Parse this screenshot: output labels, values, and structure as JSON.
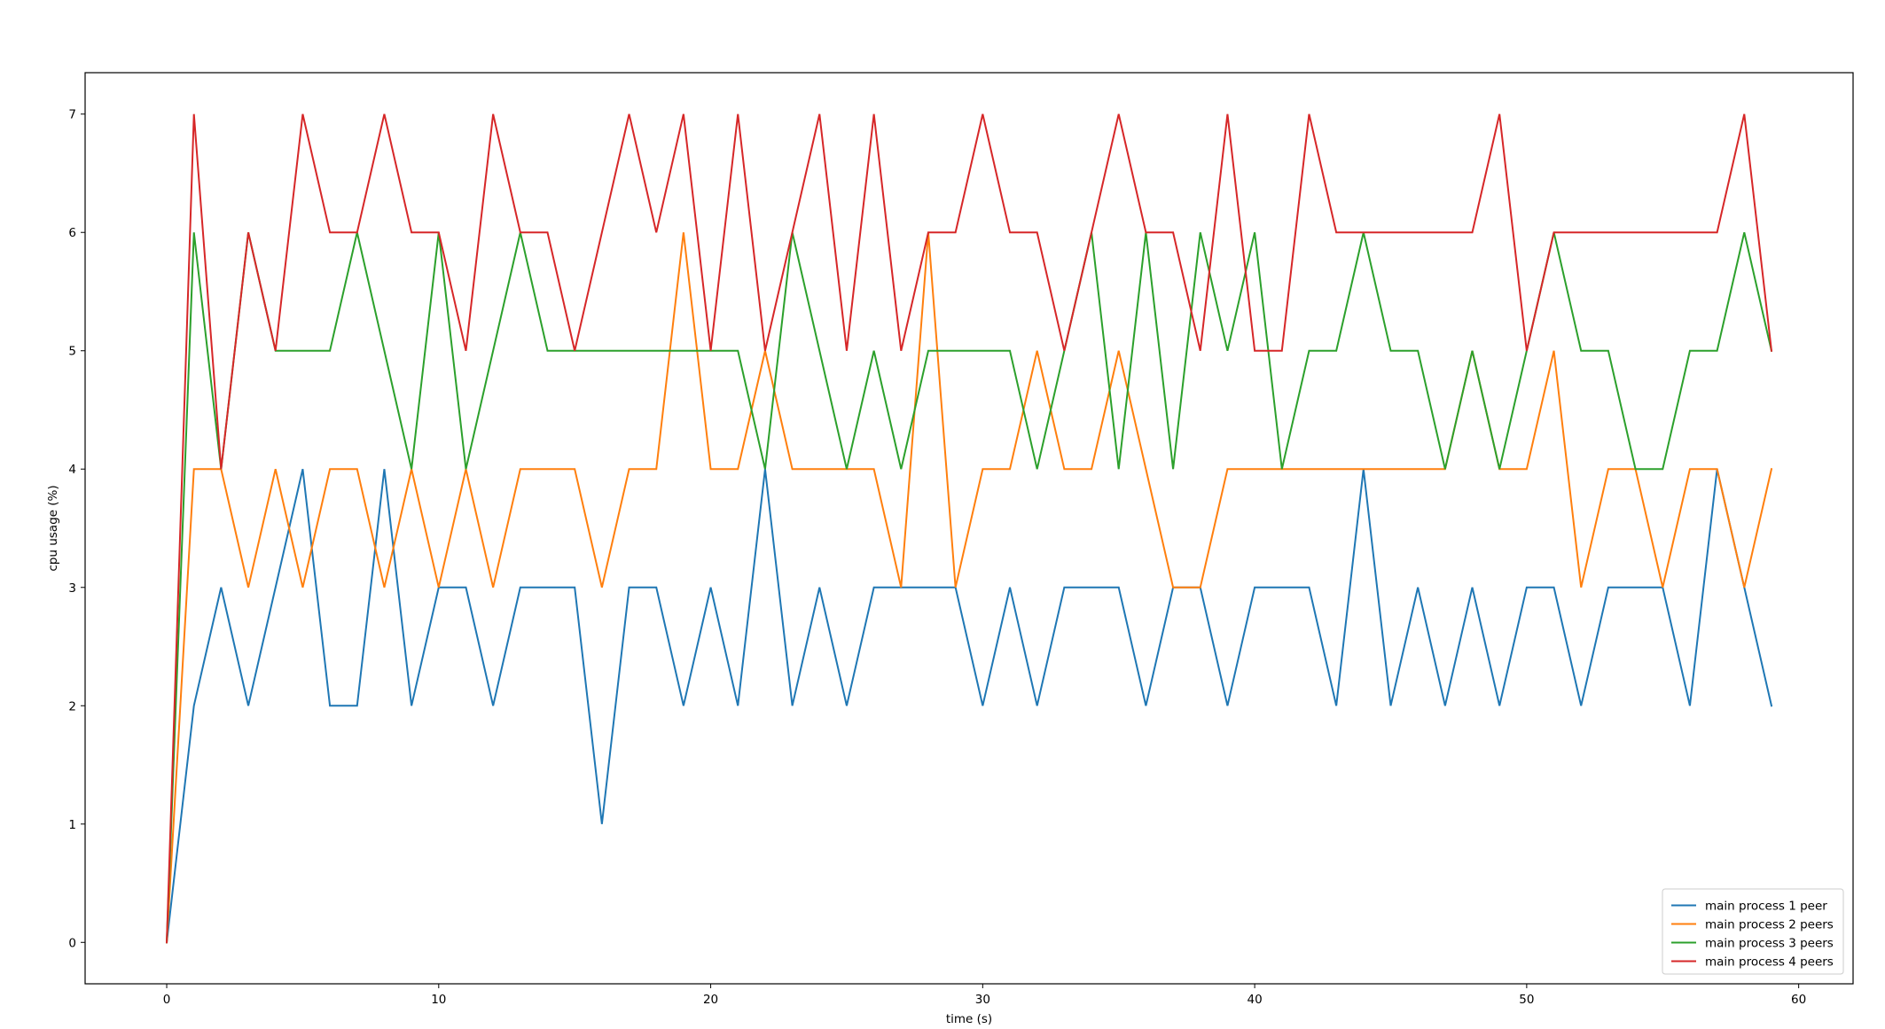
{
  "chart_data": {
    "type": "line",
    "title": "",
    "xlabel": "time (s)",
    "ylabel": "cpu usage (%)",
    "xlim": [
      -3,
      62
    ],
    "ylim": [
      -0.35,
      7.35
    ],
    "xticks": [
      0,
      10,
      20,
      30,
      40,
      50,
      60
    ],
    "yticks": [
      0,
      1,
      2,
      3,
      4,
      5,
      6,
      7
    ],
    "grid": false,
    "legend_position": "lower-right",
    "x": [
      0,
      1,
      2,
      3,
      4,
      5,
      6,
      7,
      8,
      9,
      10,
      11,
      12,
      13,
      14,
      15,
      16,
      17,
      18,
      19,
      20,
      21,
      22,
      23,
      24,
      25,
      26,
      27,
      28,
      29,
      30,
      31,
      32,
      33,
      34,
      35,
      36,
      37,
      38,
      39,
      40,
      41,
      42,
      43,
      44,
      45,
      46,
      47,
      48,
      49,
      50,
      51,
      52,
      53,
      54,
      55,
      56,
      57,
      58,
      59
    ],
    "series": [
      {
        "name": "main process 1 peer",
        "color": "#1f77b4",
        "values": [
          0,
          2,
          3,
          2,
          3,
          4,
          2,
          2,
          4,
          2,
          3,
          3,
          2,
          3,
          3,
          3,
          1,
          3,
          3,
          2,
          3,
          2,
          4,
          2,
          3,
          2,
          3,
          3,
          3,
          3,
          2,
          3,
          2,
          3,
          3,
          3,
          2,
          3,
          3,
          2,
          3,
          3,
          3,
          2,
          4,
          2,
          3,
          2,
          3,
          2,
          3,
          3,
          2,
          3,
          3,
          3,
          2,
          4,
          3,
          2
        ]
      },
      {
        "name": "main process 2 peers",
        "color": "#ff7f0e",
        "values": [
          0,
          4,
          4,
          3,
          4,
          3,
          4,
          4,
          3,
          4,
          3,
          4,
          3,
          4,
          4,
          4,
          3,
          4,
          4,
          6,
          4,
          4,
          5,
          4,
          4,
          4,
          4,
          3,
          6,
          3,
          4,
          4,
          5,
          4,
          4,
          5,
          4,
          3,
          3,
          4,
          4,
          4,
          4,
          4,
          4,
          4,
          4,
          4,
          5,
          4,
          4,
          5,
          3,
          4,
          4,
          3,
          4,
          4,
          3,
          4
        ]
      },
      {
        "name": "main process 3 peers",
        "color": "#2ca02c",
        "values": [
          0,
          6,
          4,
          6,
          5,
          5,
          5,
          6,
          5,
          4,
          6,
          4,
          5,
          6,
          5,
          5,
          5,
          5,
          5,
          5,
          5,
          5,
          4,
          6,
          5,
          4,
          5,
          4,
          5,
          5,
          5,
          5,
          4,
          5,
          6,
          4,
          6,
          4,
          6,
          5,
          6,
          4,
          5,
          5,
          6,
          5,
          5,
          4,
          5,
          4,
          5,
          6,
          5,
          5,
          4,
          4,
          5,
          5,
          6,
          5
        ]
      },
      {
        "name": "main process 4 peers",
        "color": "#d62728",
        "values": [
          0,
          7,
          4,
          6,
          5,
          7,
          6,
          6,
          7,
          6,
          6,
          5,
          7,
          6,
          6,
          5,
          6,
          7,
          6,
          7,
          5,
          7,
          5,
          6,
          7,
          5,
          7,
          5,
          6,
          6,
          7,
          6,
          6,
          5,
          6,
          7,
          6,
          6,
          5,
          7,
          5,
          5,
          7,
          6,
          6,
          6,
          6,
          6,
          6,
          7,
          5,
          6,
          6,
          6,
          6,
          6,
          6,
          6,
          7,
          5
        ]
      }
    ]
  }
}
